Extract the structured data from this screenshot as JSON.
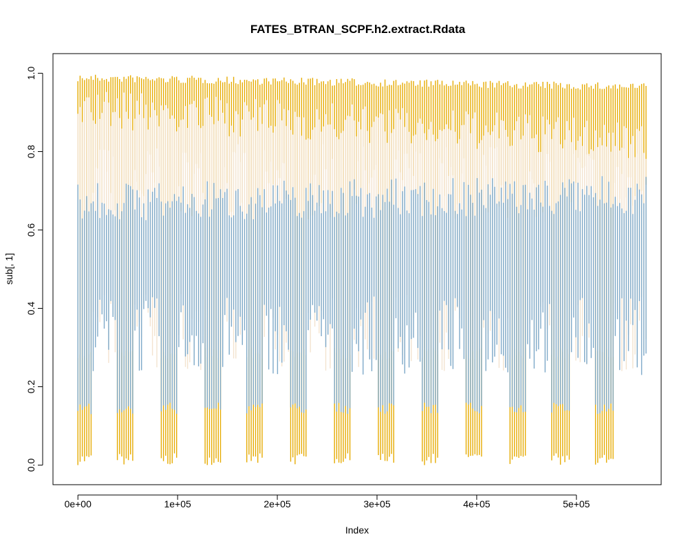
{
  "chart_data": {
    "type": "line",
    "title": "FATES_BTRAN_SCPF.h2.extract.Rdata",
    "xlabel": "Index",
    "ylabel": "sub[, 1]",
    "xlim": [
      -25000,
      585000
    ],
    "ylim": [
      -0.05,
      1.05
    ],
    "x_ticks": [
      0,
      100000,
      200000,
      300000,
      400000,
      500000
    ],
    "x_tick_labels": [
      "0e+00",
      "1e+05",
      "2e+05",
      "3e+05",
      "4e+05",
      "5e+05"
    ],
    "y_ticks": [
      0.0,
      0.2,
      0.4,
      0.6,
      0.8,
      1.0
    ],
    "y_tick_labels": [
      "0.0",
      "0.2",
      "0.4",
      "0.6",
      "0.8",
      "1.0"
    ],
    "n_index": 570000,
    "grid": false,
    "legend": "none",
    "series": [
      {
        "color": "#e6ab02",
        "upper_start": 0.998,
        "upper_end": 0.975,
        "typical_low": 0.68,
        "dip_low": 0.0
      },
      {
        "color": "#f3e3cf",
        "upper_start": 0.96,
        "upper_end": 0.88,
        "typical_low": 0.3,
        "dip_low": 0.27
      },
      {
        "color": "#7ea9c9",
        "upper_start": 0.72,
        "upper_end": 0.74,
        "typical_low": 0.29,
        "dip_low": 0.13
      }
    ],
    "dips_x": [
      5000,
      48000,
      91000,
      135000,
      178000,
      222000,
      266000,
      310000,
      353000,
      397000,
      441000,
      484000,
      528000
    ]
  }
}
